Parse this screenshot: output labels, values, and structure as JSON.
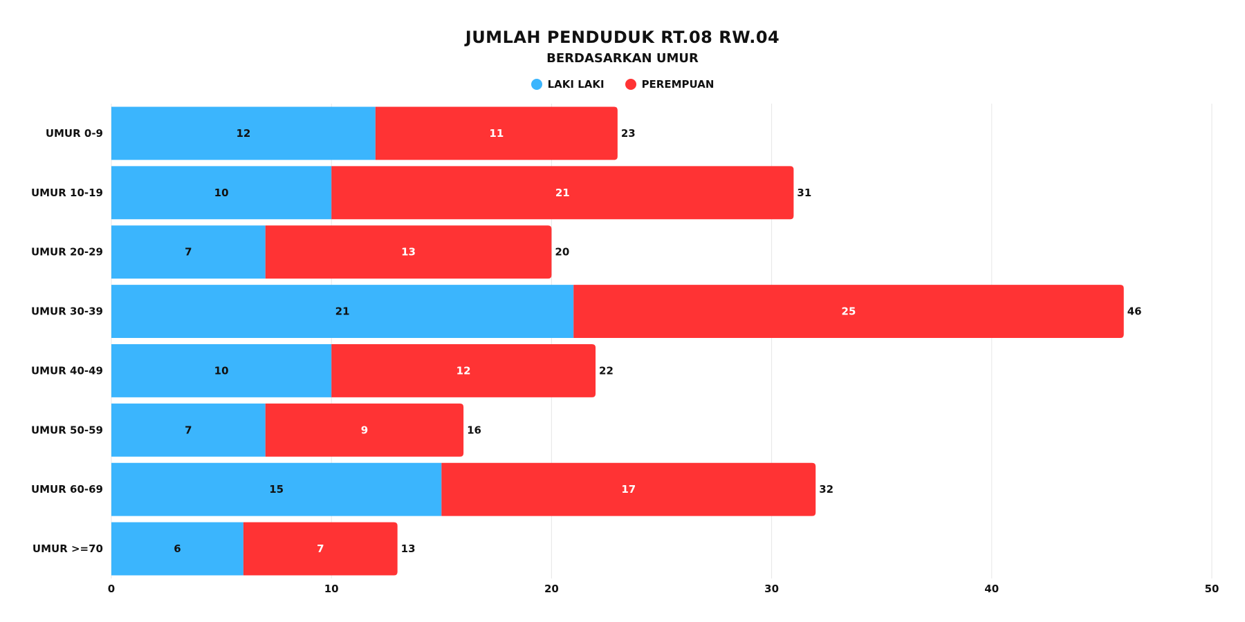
{
  "chart_data": {
    "type": "bar",
    "orientation": "horizontal",
    "stacked": true,
    "title": "JUMLAH PENDUDUK RT.08 RW.04",
    "subtitle": "BERDASARKAN UMUR",
    "categories": [
      "UMUR 0-9",
      "UMUR 10-19",
      "UMUR 20-29",
      "UMUR 30-39",
      "UMUR 40-49",
      "UMUR 50-59",
      "UMUR 60-69",
      "UMUR >=70"
    ],
    "series": [
      {
        "name": "LAKI LAKI",
        "color": "#3bb5fd",
        "values": [
          12,
          10,
          7,
          21,
          10,
          7,
          15,
          6
        ]
      },
      {
        "name": "PEREMPUAN",
        "color": "#ff3334",
        "values": [
          11,
          21,
          13,
          25,
          12,
          9,
          17,
          7
        ]
      }
    ],
    "totals": [
      23,
      31,
      20,
      46,
      22,
      16,
      32,
      13
    ],
    "xlim": [
      0,
      50
    ],
    "xticks": [
      0,
      10,
      20,
      30,
      40,
      50
    ],
    "grid": true,
    "legend_position": "top-center"
  }
}
